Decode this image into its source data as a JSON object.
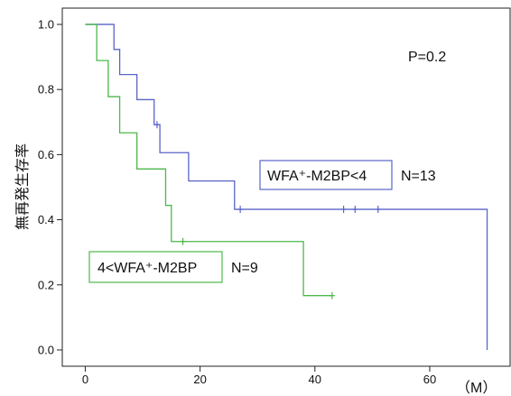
{
  "chart_data": {
    "type": "line",
    "subtype": "kaplan-meier",
    "title": "",
    "xlabel": "",
    "ylabel": "無再発生存率",
    "x_unit_label": "（M）",
    "xlim": [
      -4,
      74
    ],
    "ylim": [
      -0.05,
      1.05
    ],
    "x_ticks": [
      0,
      20,
      40,
      60
    ],
    "y_ticks": [
      0.0,
      0.2,
      0.4,
      0.6,
      0.8,
      1.0
    ],
    "x_tick_labels": [
      "0",
      "20",
      "40",
      "60"
    ],
    "y_tick_labels": [
      "0.0",
      "0.2",
      "0.4",
      "0.6",
      "0.8",
      "1.0"
    ],
    "grid": false,
    "p_value_text": "P=0.2",
    "series": [
      {
        "name": "WFA⁺-M2BP<4",
        "n_label": "N=13",
        "color": "#5a64c8",
        "x": [
          0,
          5,
          6,
          9,
          12,
          13,
          18,
          26,
          70,
          70
        ],
        "y": [
          1.0,
          0.923,
          0.846,
          0.769,
          0.692,
          0.606,
          0.519,
          0.432,
          0.432,
          0.0
        ],
        "censored": [
          {
            "x": 12.5,
            "y": 0.692
          },
          {
            "x": 27,
            "y": 0.432
          },
          {
            "x": 45,
            "y": 0.432
          },
          {
            "x": 47,
            "y": 0.432
          },
          {
            "x": 51,
            "y": 0.432
          }
        ]
      },
      {
        "name": "4<WFA⁺-M2BP",
        "n_label": "N=9",
        "color": "#4cb84c",
        "x": [
          0,
          2,
          4,
          6,
          9,
          14,
          15,
          38,
          43
        ],
        "y": [
          1.0,
          0.889,
          0.778,
          0.667,
          0.556,
          0.444,
          0.333,
          0.167,
          0.167
        ],
        "censored": [
          {
            "x": 17,
            "y": 0.333
          },
          {
            "x": 43,
            "y": 0.167
          }
        ]
      }
    ]
  },
  "colors": {
    "axis": "#222222",
    "text": "#111111"
  }
}
